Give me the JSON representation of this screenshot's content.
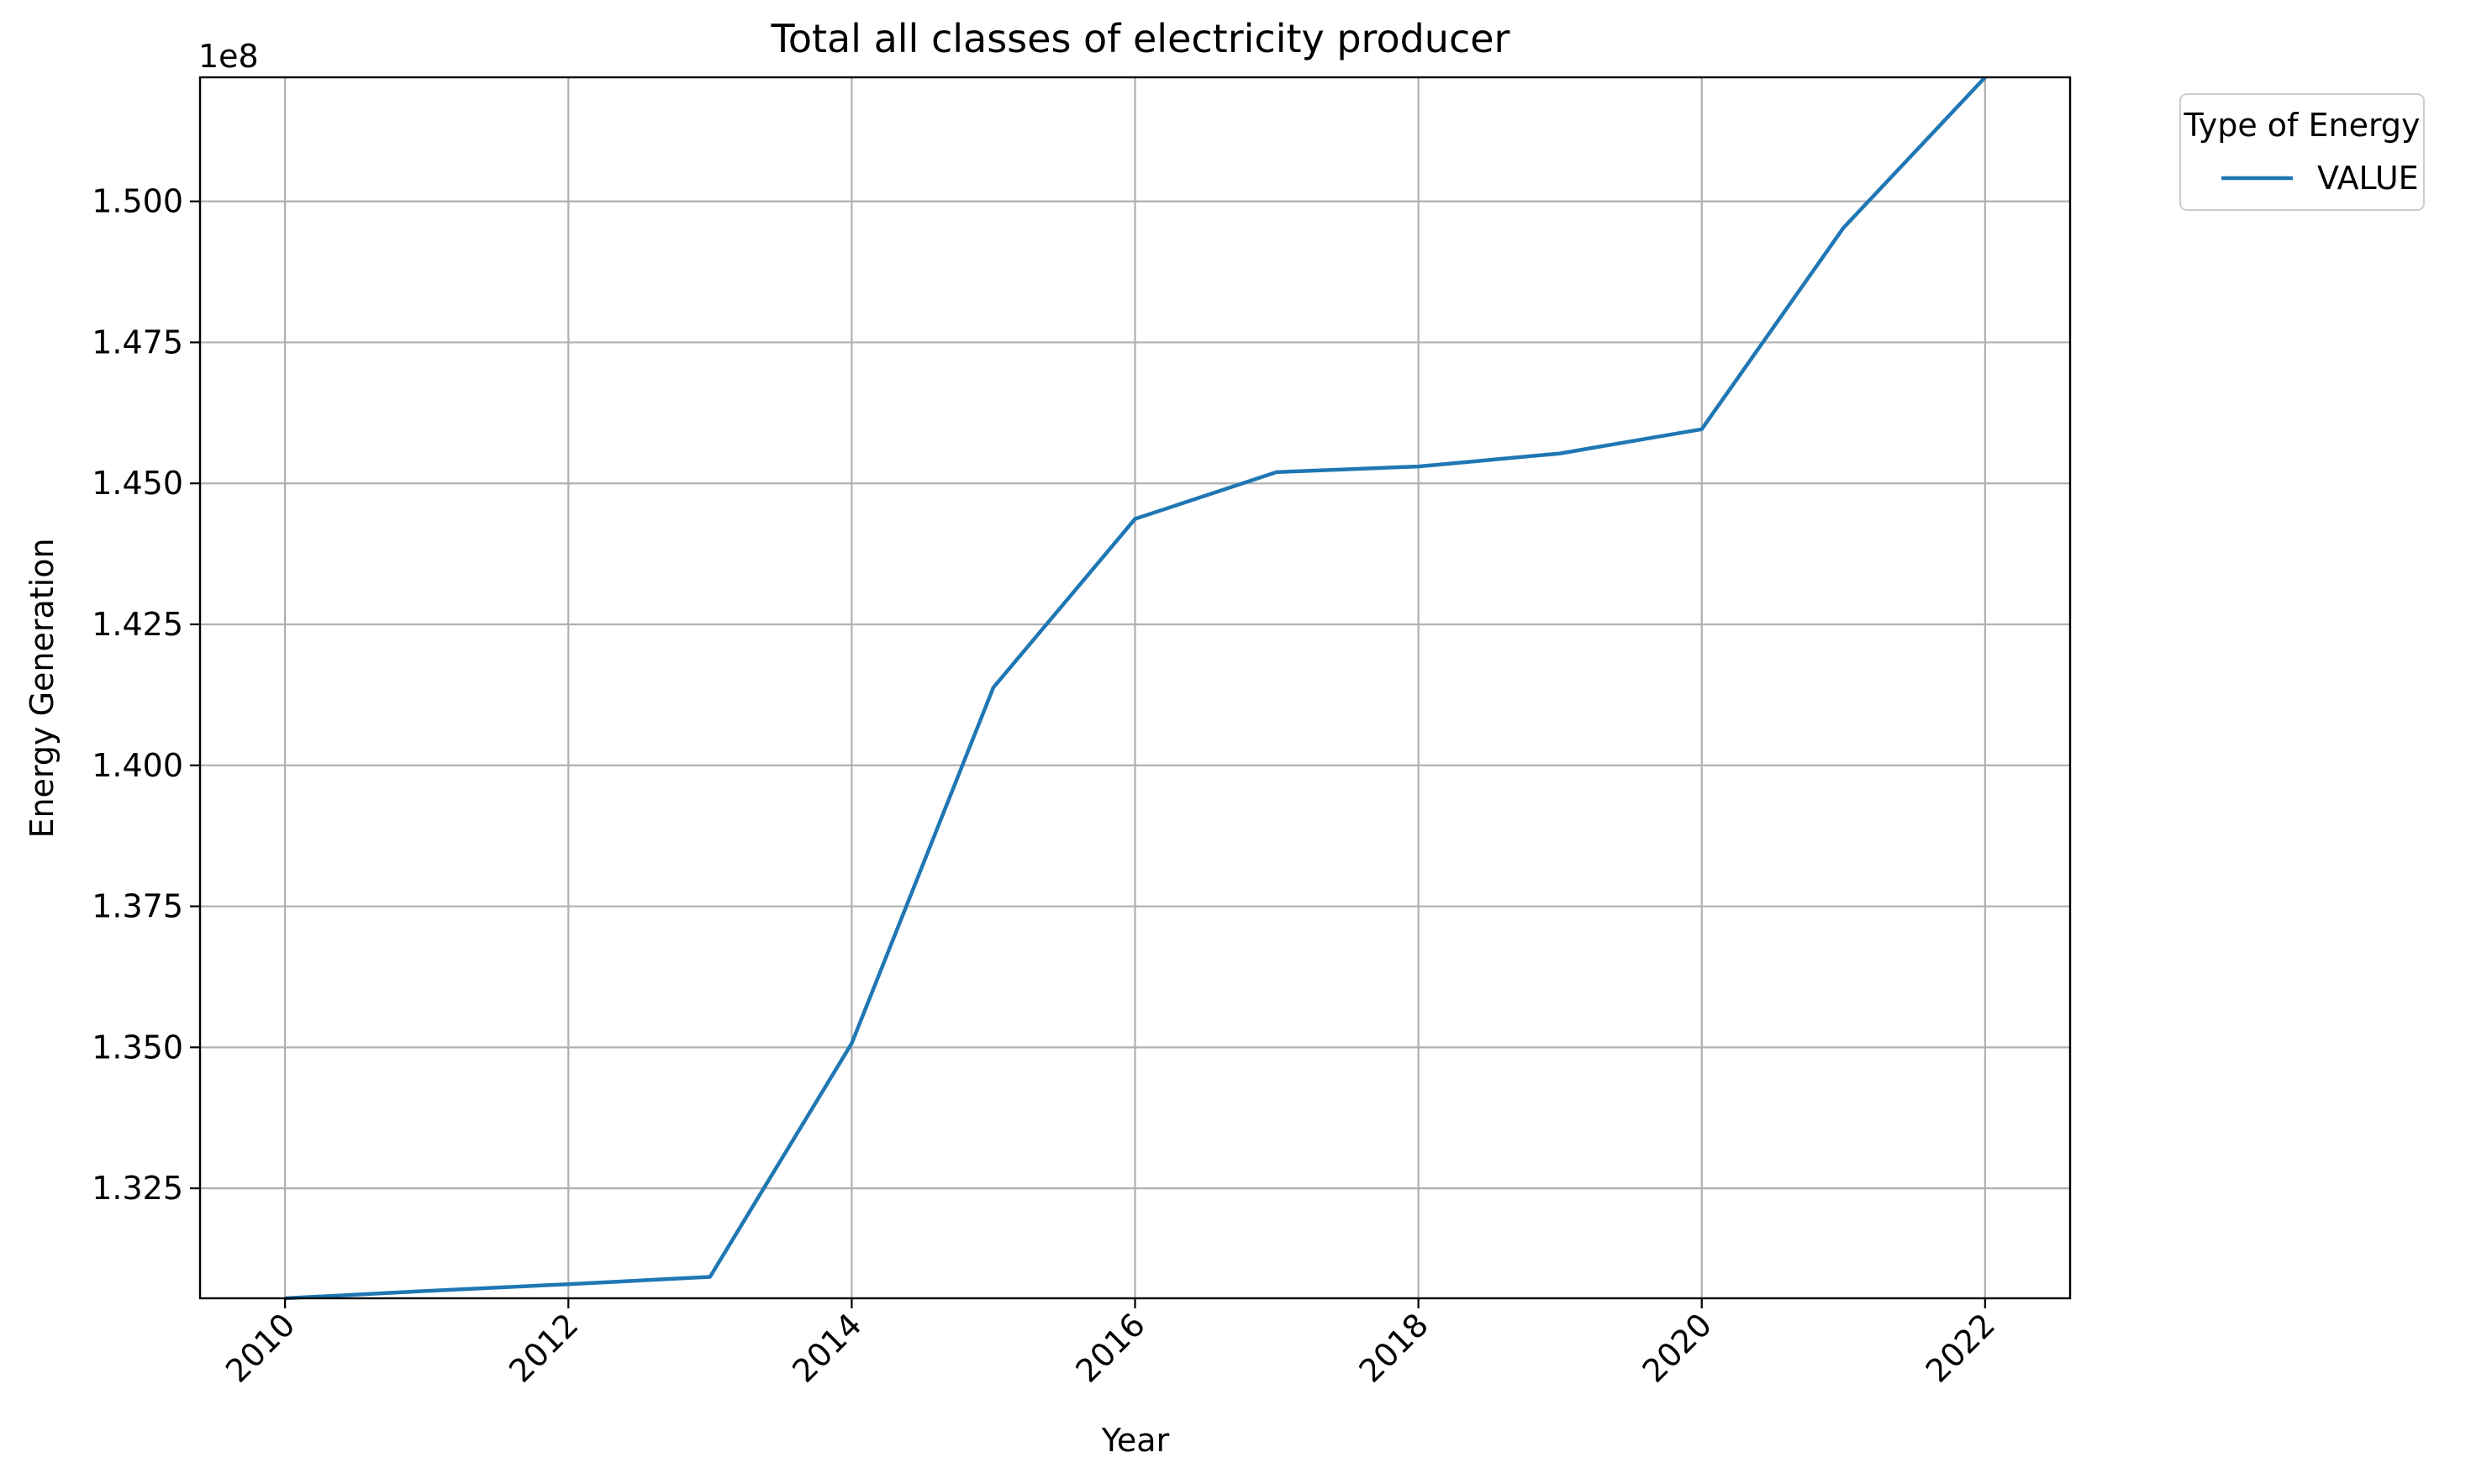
{
  "chart_data": {
    "type": "line",
    "title": "Total all classes of electricity producer",
    "xlabel": "Year",
    "ylabel": "Energy Generation",
    "y_offset_label": "1e8",
    "x": [
      2010,
      2011,
      2012,
      2013,
      2014,
      2015,
      2016,
      2017,
      2018,
      2019,
      2020,
      2021,
      2022
    ],
    "xlim": [
      2009.4,
      2022.6
    ],
    "ylim": [
      1.3055,
      1.522
    ],
    "x_ticks": [
      "2010",
      "2012",
      "2014",
      "2016",
      "2018",
      "2020",
      "2022"
    ],
    "y_ticks": [
      "1.325",
      "1.350",
      "1.375",
      "1.400",
      "1.425",
      "1.450",
      "1.475",
      "1.500"
    ],
    "grid": true,
    "legend": {
      "title": "Type of Energy",
      "placement": "outside-top-right"
    },
    "series": [
      {
        "name": "VALUE",
        "color": "#1f77b4",
        "values": [
          1.3055,
          1.3068,
          1.308,
          1.3093,
          1.3507,
          1.4138,
          1.4437,
          1.452,
          1.453,
          1.4553,
          1.4596,
          1.4953,
          1.522
        ]
      }
    ]
  }
}
